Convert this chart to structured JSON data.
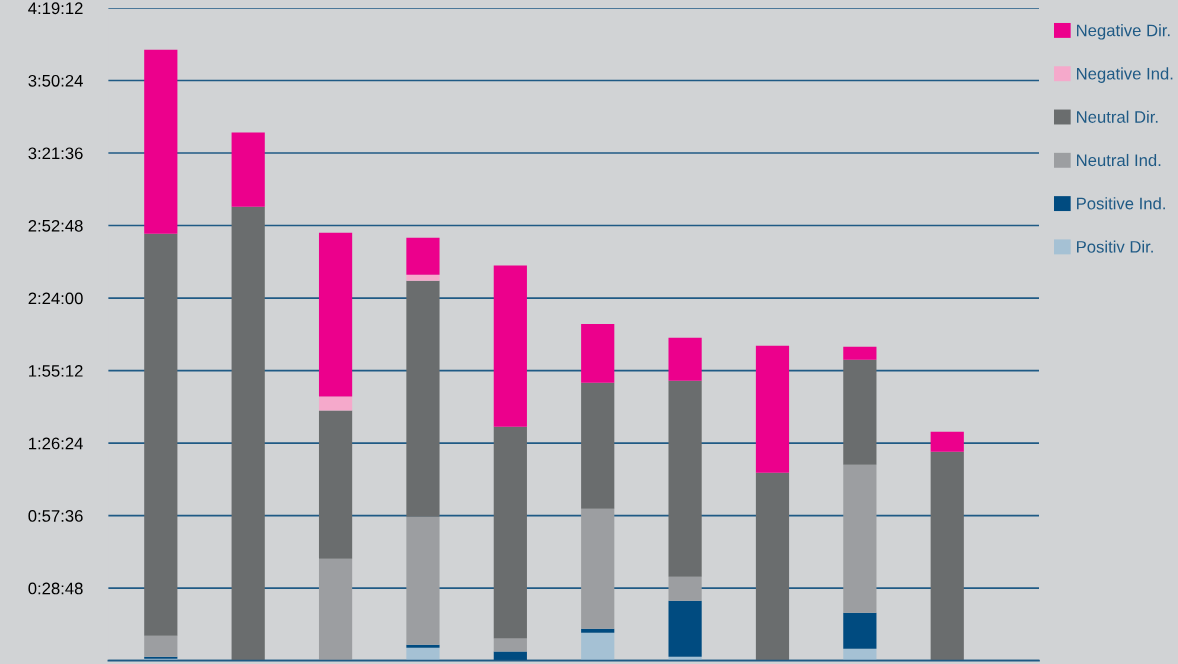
{
  "chart_data": {
    "type": "bar",
    "stacked": true,
    "categories": [
      null,
      null,
      null,
      null,
      null,
      null,
      null,
      null,
      null,
      null
    ],
    "series": [
      {
        "name": "Positiv Dir.",
        "color": "#a5c1d4",
        "values": [
          0.013,
          null,
          null,
          0.086,
          null,
          0.185,
          0.026,
          null,
          0.079,
          null
        ]
      },
      {
        "name": "Positive Ind.",
        "color": "#004b80",
        "values": [
          0.013,
          null,
          null,
          0.02,
          0.06,
          0.026,
          0.37,
          null,
          0.238,
          null
        ]
      },
      {
        "name": "Neutral Ind.",
        "color": "#9c9ea1",
        "values": [
          0.139,
          null,
          0.675,
          0.847,
          0.086,
          0.794,
          0.159,
          null,
          0.98,
          null
        ]
      },
      {
        "name": "Neutral Dir.",
        "color": "#6a6d6e",
        "values": [
          2.66,
          3.005,
          0.98,
          1.562,
          1.403,
          0.834,
          1.297,
          1.244,
          0.695,
          1.383
        ]
      },
      {
        "name": "Negative Ind.",
        "color": "#f5a9cb",
        "values": [
          null,
          null,
          0.093,
          0.04,
          null,
          null,
          null,
          null,
          null,
          null
        ]
      },
      {
        "name": "Negative Dir.",
        "color": "#ec008c",
        "values": [
          1.218,
          0.49,
          1.085,
          0.245,
          1.066,
          0.39,
          0.285,
          0.84,
          0.086,
          0.132
        ]
      }
    ],
    "ylim": [
      0,
      4.32
    ],
    "yticks": [
      {
        "value": 0,
        "label": null
      },
      {
        "value": 0.48,
        "label": "0:28:48"
      },
      {
        "value": 0.96,
        "label": "0:57:36"
      },
      {
        "value": 1.44,
        "label": "1:26:24"
      },
      {
        "value": 1.92,
        "label": "1:55:12"
      },
      {
        "value": 2.4,
        "label": "2:24:00"
      },
      {
        "value": 2.88,
        "label": "2:52:48"
      },
      {
        "value": 3.36,
        "label": "3:21:36"
      },
      {
        "value": 3.84,
        "label": "3:50:24"
      },
      {
        "value": 4.32,
        "label": "4:19:12"
      }
    ],
    "grid": "y",
    "legend": "right"
  }
}
